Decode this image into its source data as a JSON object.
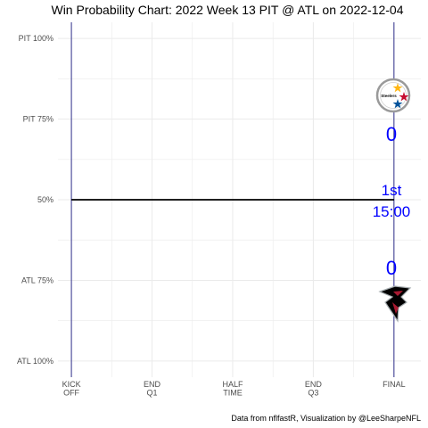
{
  "chart_data": {
    "type": "line",
    "title": "Win Probability Chart: 2022 Week 13 PIT @ ATL on 2022-12-04",
    "caption": "Data from nflfastR, Visualization by @LeeSharpeNFL",
    "x_ticks": [
      {
        "pos": 0,
        "label": [
          "KICK",
          "OFF"
        ]
      },
      {
        "pos": 15,
        "label": [
          "END",
          "Q1"
        ]
      },
      {
        "pos": 30,
        "label": [
          "HALF",
          "TIME"
        ]
      },
      {
        "pos": 45,
        "label": [
          "END",
          "Q3"
        ]
      },
      {
        "pos": 60,
        "label": [
          "FINAL"
        ]
      }
    ],
    "xlim": [
      -2.5,
      65
    ],
    "y_ticks": [
      {
        "value": 1.0,
        "label": "PIT 100%"
      },
      {
        "value": 0.75,
        "label": "PIT 75%"
      },
      {
        "value": 0.5,
        "label": "50%"
      },
      {
        "value": 0.25,
        "label": "ATL 75%"
      },
      {
        "value": 0.0,
        "label": "ATL 100%"
      }
    ],
    "ylim": [
      -0.05,
      1.05
    ],
    "series": [
      {
        "x": [
          0,
          60
        ],
        "y": [
          0.5,
          0.5
        ]
      }
    ],
    "annotations": {
      "pit_score": "0",
      "atl_score": "0",
      "quarter": "1st",
      "clock": "15:00"
    },
    "logos": [
      {
        "team": "PIT",
        "icon": "steelers-logo-icon",
        "text": "Steelers"
      },
      {
        "team": "ATL",
        "icon": "falcons-logo-icon"
      }
    ],
    "colors": {
      "line": "#000000",
      "vertical_lines": "#1a1a80",
      "annotation": "#0000ff",
      "grid": "#ebebeb"
    }
  }
}
